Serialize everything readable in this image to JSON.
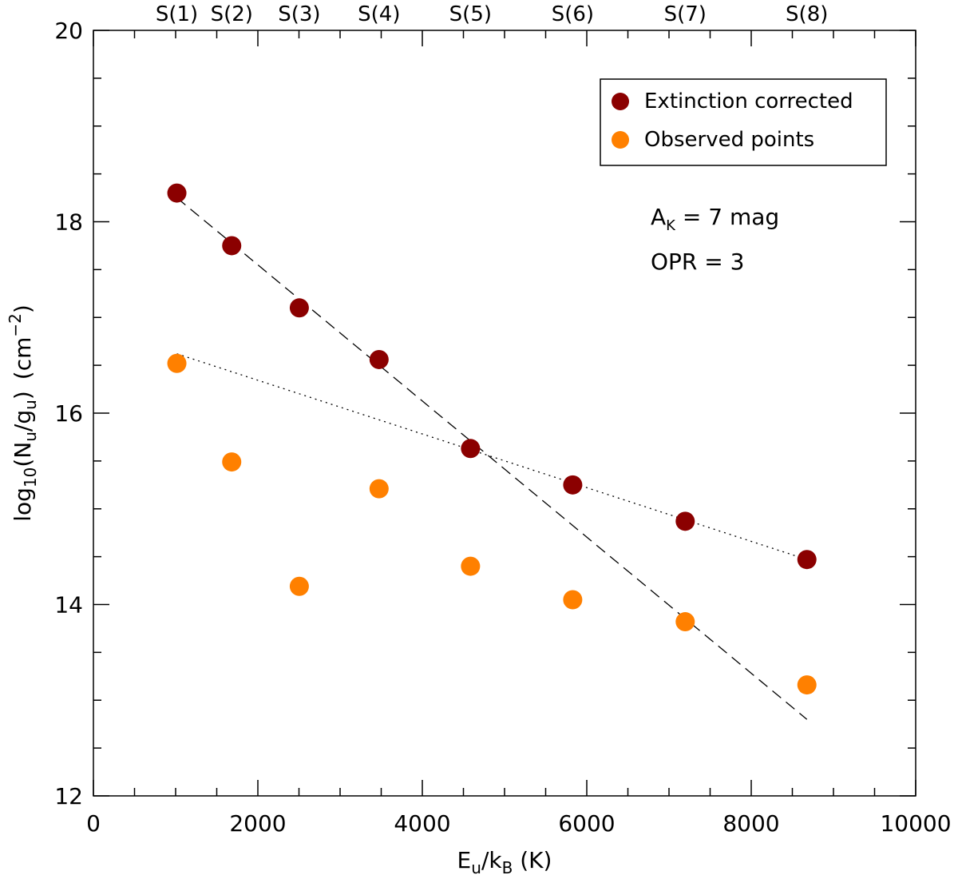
{
  "chart_data": {
    "type": "scatter",
    "xlabel": {
      "main": "E",
      "sub1": "u",
      "slash": "/k",
      "sub2": "B",
      "unit": " (K)"
    },
    "ylabel": {
      "pre": "log",
      "sub1": "10",
      "mid": "(N",
      "sub2": "u",
      "slash": "/g",
      "sub3": "u",
      "close": ")",
      "unit": "(cm",
      "sup": "−2",
      "end": ")"
    },
    "xlim": [
      0,
      10000
    ],
    "ylim": [
      12,
      20
    ],
    "x_ticks": [
      0,
      2000,
      4000,
      6000,
      8000,
      10000
    ],
    "x_tick_labels": [
      "0",
      "2000",
      "4000",
      "6000",
      "8000",
      "10000"
    ],
    "y_ticks": [
      12,
      14,
      16,
      18,
      20
    ],
    "y_tick_labels": [
      "12",
      "14",
      "16",
      "18",
      "20"
    ],
    "top_labels": [
      {
        "text": "S(1)",
        "x": 1015
      },
      {
        "text": "S(2)",
        "x": 1682
      },
      {
        "text": "S(3)",
        "x": 2504
      },
      {
        "text": "S(4)",
        "x": 3474
      },
      {
        "text": "S(5)",
        "x": 4586
      },
      {
        "text": "S(6)",
        "x": 5829
      },
      {
        "text": "S(7)",
        "x": 7197
      },
      {
        "text": "S(8)",
        "x": 8677
      }
    ],
    "series": [
      {
        "name": "Extinction corrected",
        "color": "#8b0000",
        "x": [
          1015,
          1682,
          2504,
          3474,
          4586,
          5829,
          7197,
          8677
        ],
        "y": [
          18.3,
          17.75,
          17.1,
          16.56,
          15.63,
          15.25,
          14.87,
          14.47
        ]
      },
      {
        "name": "Observed points",
        "color": "#ff8000",
        "x": [
          1015,
          1682,
          2504,
          3474,
          4586,
          5829,
          7197,
          8677
        ],
        "y": [
          16.52,
          15.49,
          14.19,
          15.21,
          14.4,
          14.05,
          13.82,
          13.16
        ]
      }
    ],
    "fits": [
      {
        "name": "steep-fit",
        "style": "dashed",
        "x": [
          1015,
          8677
        ],
        "y": [
          18.25,
          12.8
        ]
      },
      {
        "name": "shallow-fit",
        "style": "dotted",
        "x": [
          1015,
          8677
        ],
        "y": [
          16.62,
          14.47
        ]
      }
    ],
    "annotations": {
      "ak": {
        "main": "A",
        "sub": "K",
        "rest": " = 7 mag"
      },
      "opr": "OPR = 3"
    },
    "legend": [
      "Extinction corrected",
      "Observed points"
    ],
    "legend_position": "top-right"
  }
}
